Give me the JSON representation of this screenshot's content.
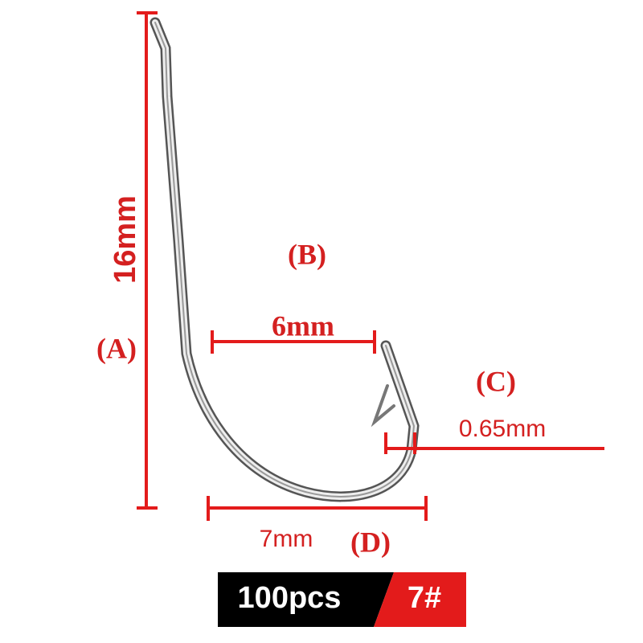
{
  "labels": {
    "a": "(A)",
    "a_size": "16mm",
    "b": "(B)",
    "b_size": "6mm",
    "c": "(C)",
    "c_size": "0.65mm",
    "d": "(D)",
    "d_size": "7mm"
  },
  "badge": {
    "quantity": "100pcs",
    "size": "7#"
  }
}
